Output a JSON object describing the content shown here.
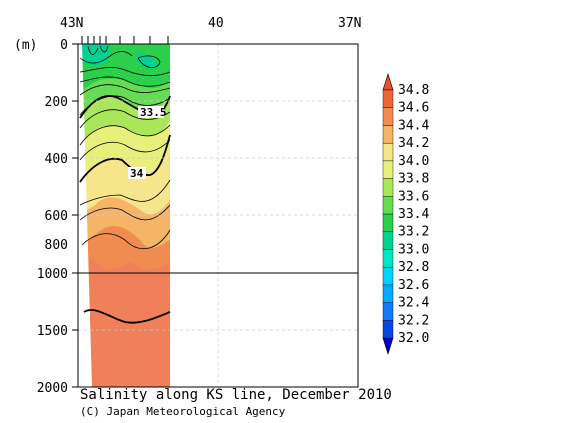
{
  "chart_data": {
    "type": "heatmap",
    "title": "Salinity along KS line, December 2010",
    "credit": "(C) Japan Meteorological Agency",
    "ylabel": "(m)",
    "x_ticks": [
      "43N",
      "40",
      "37N"
    ],
    "x_range": [
      43,
      37
    ],
    "y_ticks_upper": [
      "0",
      "200",
      "400",
      "600",
      "800",
      "1000"
    ],
    "y_ticks_lower": [
      "1500",
      "2000"
    ],
    "y_range": [
      0,
      2000
    ],
    "y_break": 1000,
    "data_extent_x": [
      43,
      41.6
    ],
    "colorbar": {
      "levels": [
        "32.0",
        "32.2",
        "32.4",
        "32.6",
        "32.8",
        "33.0",
        "33.2",
        "33.4",
        "33.6",
        "33.8",
        "34.0",
        "34.2",
        "34.4",
        "34.6",
        "34.8"
      ],
      "colors": [
        "#0000c8",
        "#0a46e6",
        "#1478ff",
        "#00aaff",
        "#00d2ff",
        "#00e6c8",
        "#00d296",
        "#2ad04b",
        "#66dc55",
        "#aae65a",
        "#e6f07a",
        "#f5e68c",
        "#f5b466",
        "#f08c50",
        "#f0643c",
        "#e6502d"
      ]
    },
    "contour_labels": [
      "33.5",
      "34"
    ]
  }
}
